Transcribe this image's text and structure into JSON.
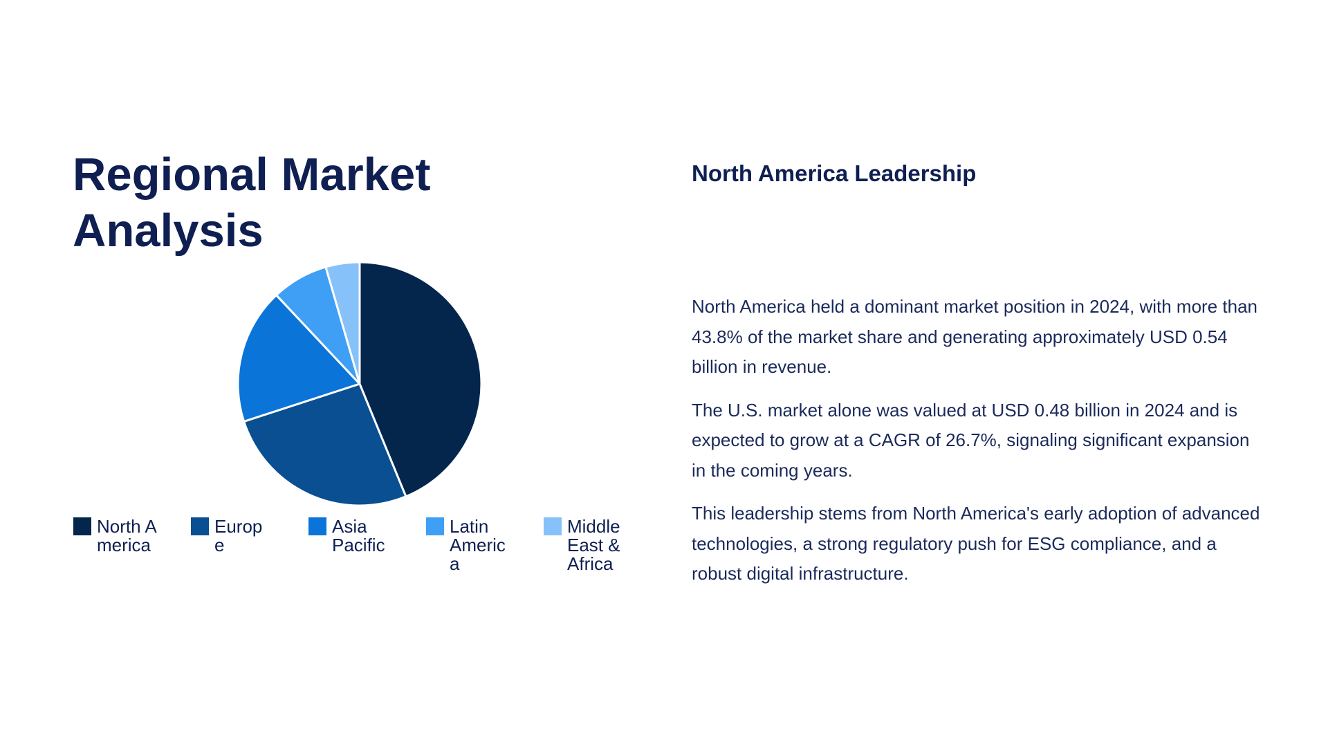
{
  "slide": {
    "title": "Regional Market Analysis"
  },
  "chart_data": {
    "type": "pie",
    "title": "",
    "categories": [
      "North America",
      "Europe",
      "Asia Pacific",
      "Latin America",
      "Middle East & Africa"
    ],
    "values": [
      43.8,
      26.2,
      18.0,
      7.5,
      4.5
    ],
    "colors": [
      "#04264d",
      "#094f91",
      "#0b74d9",
      "#3f9ff5",
      "#86c1f9"
    ],
    "start_angle_deg": 0,
    "direction": "clockwise",
    "legend_placement": "bottom"
  },
  "legend": {
    "items": [
      {
        "label": "North America"
      },
      {
        "label": "Europe"
      },
      {
        "label": "Asia Pacific"
      },
      {
        "label": "Latin America"
      },
      {
        "label": "Middle East & Africa"
      }
    ]
  },
  "right": {
    "heading": "North America Leadership",
    "paragraphs": [
      "North America held a dominant market position in 2024, with more than 43.8% of the market share and generating approximately USD 0.54 billion in revenue.",
      "The U.S. market alone was valued at USD 0.48 billion in 2024 and is expected to grow at a CAGR of 26.7%, signaling significant expansion in the coming years.",
      "This leadership stems from North America's early adoption of advanced technologies, a strong regulatory push for ESG compliance, and a robust digital infrastructure."
    ]
  }
}
